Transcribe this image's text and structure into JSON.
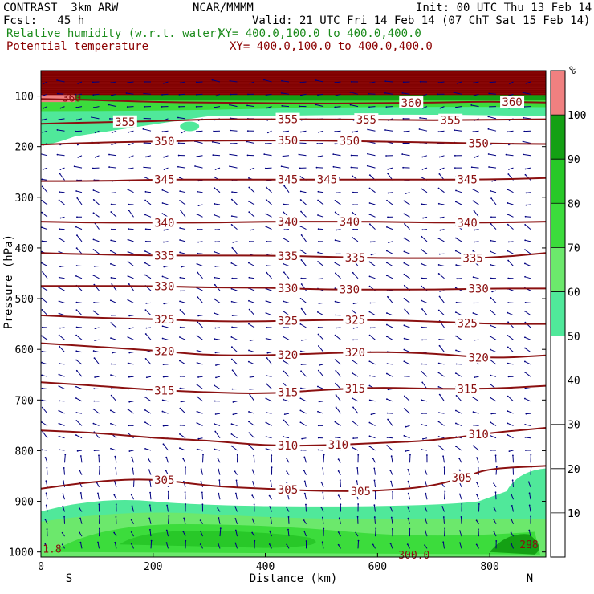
{
  "header": {
    "model": "CONTRAST  3km ARW",
    "center": "NCAR/MMMM",
    "init": "Init: 00 UTC Thu 13 Feb 14",
    "fcst": "Fcst:   45 h",
    "valid": "Valid: 21 UTC Fri 14 Feb 14 (07 ChT Sat 15 Feb 14)",
    "rh_label": "Relative humidity (w.r.t. water)",
    "rh_xy": "XY= 400.0,100.0 to 400.0,400.0",
    "theta_label": "Potential temperature",
    "theta_xy": "XY= 400.0,100.0 to 400.0,400.0"
  },
  "colors": {
    "rh_50": "#50e89a",
    "rh_60": "#6ce86c",
    "rh_70": "#3cdc3c",
    "rh_80": "#28c828",
    "rh_90": "#14a014",
    "rh_100": "#f08080",
    "top_band": "#800000",
    "contour": "#8b1010",
    "wind": "#000080",
    "axis": "#000000"
  },
  "chart_data": {
    "type": "heatmap",
    "title": "Relative humidity (w.r.t. water) and Potential temperature cross-section",
    "xlabel": "Distance (km)",
    "ylabel": "Pressure (hPa)",
    "xlim": [
      0,
      900
    ],
    "ylim": [
      1010,
      50
    ],
    "x_ticks": [
      0,
      200,
      400,
      600,
      800
    ],
    "x_tick_labels": [
      "0",
      "200",
      "400",
      "600",
      "800"
    ],
    "y_ticks": [
      100,
      200,
      300,
      400,
      500,
      600,
      700,
      800,
      900,
      1000
    ],
    "y_tick_labels": [
      "100",
      "200",
      "300",
      "400",
      "500",
      "600",
      "700",
      "800",
      "900",
      "1000"
    ],
    "left_end_label": "S",
    "right_end_label": "N",
    "colorbar_unit": "%",
    "colorbar_levels": [
      10,
      20,
      30,
      40,
      50,
      60,
      70,
      80,
      90,
      100
    ],
    "colorbar_labels": [
      "10",
      "20",
      "30",
      "40",
      "50",
      "60",
      "70",
      "80",
      "90",
      "100"
    ],
    "theta_contours": [
      {
        "value": 305,
        "label": "305",
        "points": [
          [
            0,
            875
          ],
          [
            100,
            860
          ],
          [
            200,
            855
          ],
          [
            300,
            870
          ],
          [
            400,
            875
          ],
          [
            500,
            880
          ],
          [
            600,
            880
          ],
          [
            700,
            870
          ],
          [
            760,
            850
          ],
          [
            800,
            835
          ],
          [
            900,
            830
          ]
        ],
        "label_x": [
          220,
          440,
          570,
          750
        ]
      },
      {
        "value": 310,
        "label": "310",
        "points": [
          [
            0,
            760
          ],
          [
            100,
            765
          ],
          [
            200,
            775
          ],
          [
            300,
            780
          ],
          [
            400,
            790
          ],
          [
            500,
            790
          ],
          [
            600,
            785
          ],
          [
            700,
            780
          ],
          [
            800,
            765
          ],
          [
            900,
            755
          ]
        ],
        "label_x": [
          440,
          530,
          780
        ]
      },
      {
        "value": 315,
        "label": "315",
        "points": [
          [
            0,
            665
          ],
          [
            100,
            672
          ],
          [
            200,
            680
          ],
          [
            300,
            685
          ],
          [
            400,
            688
          ],
          [
            500,
            680
          ],
          [
            600,
            675
          ],
          [
            700,
            678
          ],
          [
            800,
            678
          ],
          [
            900,
            672
          ]
        ],
        "label_x": [
          220,
          440,
          560,
          760
        ]
      },
      {
        "value": 320,
        "label": "320",
        "points": [
          [
            0,
            588
          ],
          [
            100,
            595
          ],
          [
            200,
            602
          ],
          [
            300,
            612
          ],
          [
            400,
            612
          ],
          [
            500,
            608
          ],
          [
            600,
            605
          ],
          [
            700,
            608
          ],
          [
            800,
            618
          ],
          [
            900,
            612
          ]
        ],
        "label_x": [
          220,
          440,
          560,
          780
        ]
      },
      {
        "value": 325,
        "label": "325",
        "points": [
          [
            0,
            533
          ],
          [
            100,
            538
          ],
          [
            200,
            540
          ],
          [
            300,
            545
          ],
          [
            400,
            545
          ],
          [
            500,
            542
          ],
          [
            600,
            542
          ],
          [
            700,
            545
          ],
          [
            800,
            550
          ],
          [
            900,
            550
          ]
        ],
        "label_x": [
          220,
          440,
          560,
          760
        ]
      },
      {
        "value": 330,
        "label": "330",
        "points": [
          [
            0,
            475
          ],
          [
            100,
            475
          ],
          [
            200,
            475
          ],
          [
            300,
            478
          ],
          [
            400,
            478
          ],
          [
            500,
            482
          ],
          [
            600,
            482
          ],
          [
            700,
            482
          ],
          [
            800,
            480
          ],
          [
            900,
            480
          ]
        ],
        "label_x": [
          220,
          440,
          550,
          780
        ]
      },
      {
        "value": 335,
        "label": "335",
        "points": [
          [
            0,
            410
          ],
          [
            100,
            413
          ],
          [
            200,
            415
          ],
          [
            300,
            415
          ],
          [
            400,
            415
          ],
          [
            500,
            417
          ],
          [
            600,
            420
          ],
          [
            700,
            420
          ],
          [
            800,
            420
          ],
          [
            900,
            410
          ]
        ],
        "label_x": [
          220,
          440,
          560,
          770
        ]
      },
      {
        "value": 340,
        "label": "340",
        "points": [
          [
            0,
            348
          ],
          [
            100,
            350
          ],
          [
            200,
            350
          ],
          [
            300,
            350
          ],
          [
            400,
            348
          ],
          [
            500,
            348
          ],
          [
            600,
            348
          ],
          [
            700,
            350
          ],
          [
            800,
            350
          ],
          [
            900,
            348
          ]
        ],
        "label_x": [
          220,
          440,
          550,
          760
        ]
      },
      {
        "value": 345,
        "label": "345",
        "points": [
          [
            0,
            268
          ],
          [
            100,
            268
          ],
          [
            200,
            265
          ],
          [
            300,
            265
          ],
          [
            400,
            265
          ],
          [
            500,
            265
          ],
          [
            600,
            265
          ],
          [
            700,
            265
          ],
          [
            800,
            265
          ],
          [
            900,
            262
          ]
        ],
        "label_x": [
          220,
          440,
          510,
          760
        ]
      },
      {
        "value": 350,
        "label": "350",
        "points": [
          [
            0,
            196
          ],
          [
            100,
            192
          ],
          [
            200,
            190
          ],
          [
            300,
            188
          ],
          [
            400,
            188
          ],
          [
            500,
            188
          ],
          [
            600,
            190
          ],
          [
            700,
            192
          ],
          [
            800,
            194
          ],
          [
            900,
            195
          ]
        ],
        "label_x": [
          220,
          440,
          550,
          780
        ]
      },
      {
        "value": 355,
        "label": "355",
        "points": [
          [
            0,
            155
          ],
          [
            100,
            152
          ],
          [
            200,
            150
          ],
          [
            300,
            146
          ],
          [
            400,
            146
          ],
          [
            500,
            146
          ],
          [
            600,
            147
          ],
          [
            700,
            148
          ],
          [
            800,
            147
          ],
          [
            900,
            146
          ]
        ],
        "label_x": [
          150,
          440,
          580,
          730
        ]
      },
      {
        "value": 360,
        "label": "360",
        "points": [
          [
            0,
            106
          ],
          [
            100,
            108
          ],
          [
            200,
            112
          ],
          [
            300,
            113
          ],
          [
            400,
            114
          ],
          [
            500,
            115
          ],
          [
            600,
            114
          ],
          [
            700,
            113
          ],
          [
            800,
            111
          ],
          [
            900,
            113
          ]
        ],
        "label_x": [
          660,
          840
        ]
      }
    ],
    "small_labels": [
      {
        "text": "360",
        "x": 55,
        "p": 103
      },
      {
        "text": "1.8",
        "x": 20,
        "p": 993
      },
      {
        "text": "298",
        "x": 870,
        "p": 985
      },
      {
        "text": "300.0",
        "x": 665,
        "p": 1005
      }
    ]
  }
}
